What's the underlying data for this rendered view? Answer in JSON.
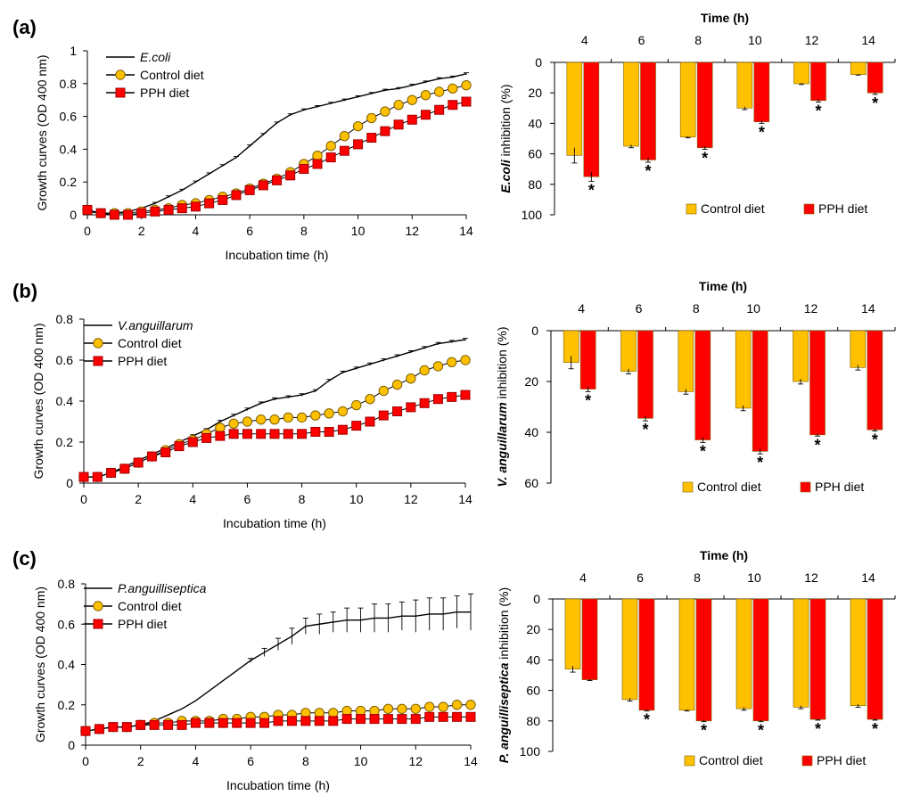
{
  "chart_data": [
    {
      "panel": "(a)",
      "type": "line",
      "xlabel": "Incubation time (h)",
      "ylabel": "Growth curves (OD 400 nm)",
      "xlim": [
        0,
        14
      ],
      "ylim": [
        0,
        1
      ],
      "xticks": [
        0,
        2,
        4,
        6,
        8,
        10,
        12,
        14
      ],
      "yticks": [
        0,
        0.2,
        0.4,
        0.6,
        0.8,
        1
      ],
      "ytick_labels": [
        "0",
        "0.2",
        "0.4",
        "0.6",
        "0.8",
        "1"
      ],
      "legend": [
        "E.coli",
        "Control diet",
        "PPH diet"
      ],
      "x": [
        0,
        0.5,
        1,
        1.5,
        2,
        2.5,
        3,
        3.5,
        4,
        4.5,
        5,
        5.5,
        6,
        6.5,
        7,
        7.5,
        8,
        8.5,
        9,
        9.5,
        10,
        10.5,
        11,
        11.5,
        12,
        12.5,
        13,
        13.5,
        14
      ],
      "series": [
        {
          "name": "E.coli",
          "style": "line",
          "color": "#000000",
          "values": [
            0.02,
            0.01,
            0.01,
            0.02,
            0.04,
            0.07,
            0.11,
            0.15,
            0.2,
            0.25,
            0.3,
            0.35,
            0.42,
            0.49,
            0.56,
            0.61,
            0.64,
            0.66,
            0.68,
            0.7,
            0.72,
            0.74,
            0.76,
            0.77,
            0.79,
            0.81,
            0.83,
            0.84,
            0.86
          ]
        },
        {
          "name": "Control diet",
          "style": "circle",
          "color": "#ffc000",
          "values": [
            0.03,
            0.01,
            0.01,
            0.01,
            0.02,
            0.03,
            0.04,
            0.06,
            0.07,
            0.09,
            0.11,
            0.13,
            0.16,
            0.19,
            0.22,
            0.26,
            0.31,
            0.36,
            0.42,
            0.48,
            0.54,
            0.59,
            0.63,
            0.67,
            0.7,
            0.73,
            0.75,
            0.77,
            0.79
          ]
        },
        {
          "name": "PPH diet",
          "style": "square",
          "color": "#ff0000",
          "values": [
            0.03,
            0.01,
            0.0,
            0.0,
            0.01,
            0.02,
            0.03,
            0.04,
            0.05,
            0.07,
            0.09,
            0.12,
            0.15,
            0.18,
            0.21,
            0.24,
            0.28,
            0.31,
            0.35,
            0.39,
            0.43,
            0.47,
            0.51,
            0.55,
            0.58,
            0.61,
            0.64,
            0.67,
            0.69
          ]
        }
      ]
    },
    {
      "panel": "(a)",
      "type": "bar",
      "title": "Time (h)",
      "ylabel_italic": "E.coli",
      "ylabel_rest": " inhibition (%)",
      "categories": [
        "4",
        "6",
        "8",
        "10",
        "12",
        "14"
      ],
      "ylim": [
        0,
        100
      ],
      "yticks": [
        0,
        20,
        40,
        60,
        80,
        100
      ],
      "legend": [
        "Control diet",
        "PPH diet"
      ],
      "significance": [
        true,
        true,
        true,
        true,
        true,
        true
      ],
      "series": [
        {
          "name": "Control diet",
          "color": "#ffc000",
          "values": [
            61,
            55,
            49,
            30,
            14,
            8
          ],
          "errors": [
            5,
            1,
            0.5,
            1,
            0.5,
            0.3
          ]
        },
        {
          "name": "PPH diet",
          "color": "#ff0000",
          "values": [
            75,
            64,
            56,
            39,
            25,
            20
          ],
          "errors": [
            3,
            1.5,
            1,
            1,
            1,
            1
          ]
        }
      ]
    },
    {
      "panel": "(b)",
      "type": "line",
      "xlabel": "Incubation time (h)",
      "ylabel": "Growth curves (OD 400 nm)",
      "xlim": [
        0,
        14
      ],
      "ylim": [
        0,
        0.8
      ],
      "xticks": [
        0,
        2,
        4,
        6,
        8,
        10,
        12,
        14
      ],
      "yticks": [
        0,
        0.2,
        0.4,
        0.6,
        0.8
      ],
      "ytick_labels": [
        "0",
        "0.2",
        "0.4",
        "0.6",
        "0.8"
      ],
      "legend": [
        "V.anguillarum",
        "Control diet",
        "PPH diet"
      ],
      "x": [
        0,
        0.5,
        1,
        1.5,
        2,
        2.5,
        3,
        3.5,
        4,
        4.5,
        5,
        5.5,
        6,
        6.5,
        7,
        7.5,
        8,
        8.5,
        9,
        9.5,
        10,
        10.5,
        11,
        11.5,
        12,
        12.5,
        13,
        13.5,
        14
      ],
      "series": [
        {
          "name": "V.anguillarum",
          "style": "line",
          "color": "#000000",
          "values": [
            0.03,
            0.03,
            0.05,
            0.08,
            0.11,
            0.14,
            0.17,
            0.2,
            0.23,
            0.26,
            0.3,
            0.33,
            0.36,
            0.39,
            0.41,
            0.42,
            0.43,
            0.45,
            0.5,
            0.54,
            0.56,
            0.58,
            0.6,
            0.62,
            0.64,
            0.66,
            0.68,
            0.69,
            0.7
          ]
        },
        {
          "name": "Control diet",
          "style": "circle",
          "color": "#ffc000",
          "values": [
            0.03,
            0.03,
            0.05,
            0.07,
            0.1,
            0.13,
            0.16,
            0.19,
            0.21,
            0.24,
            0.27,
            0.29,
            0.3,
            0.31,
            0.31,
            0.32,
            0.32,
            0.33,
            0.34,
            0.35,
            0.38,
            0.41,
            0.45,
            0.48,
            0.51,
            0.55,
            0.57,
            0.59,
            0.6
          ]
        },
        {
          "name": "PPH diet",
          "style": "square",
          "color": "#ff0000",
          "values": [
            0.03,
            0.03,
            0.05,
            0.07,
            0.1,
            0.13,
            0.15,
            0.18,
            0.2,
            0.22,
            0.23,
            0.24,
            0.24,
            0.24,
            0.24,
            0.24,
            0.24,
            0.25,
            0.25,
            0.26,
            0.28,
            0.3,
            0.33,
            0.35,
            0.37,
            0.39,
            0.41,
            0.42,
            0.43
          ]
        }
      ]
    },
    {
      "panel": "(b)",
      "type": "bar",
      "title": "Time (h)",
      "ylabel_italic": "V. anguillarum",
      "ylabel_rest": " inhibition (%)",
      "categories": [
        "4",
        "6",
        "8",
        "10",
        "12",
        "14"
      ],
      "ylim": [
        0,
        60
      ],
      "yticks": [
        0,
        20,
        40,
        60
      ],
      "legend": [
        "Control diet",
        "PPH diet"
      ],
      "significance": [
        true,
        true,
        true,
        true,
        true,
        true
      ],
      "series": [
        {
          "name": "Control diet",
          "color": "#ffc000",
          "values": [
            12.5,
            16,
            24,
            30.5,
            20,
            14.5
          ],
          "errors": [
            2.5,
            1,
            1,
            1,
            1,
            1
          ]
        },
        {
          "name": "PPH diet",
          "color": "#ff0000",
          "values": [
            23,
            34.5,
            43,
            47.5,
            41,
            39
          ],
          "errors": [
            1,
            1,
            1,
            1,
            0.5,
            0.5
          ]
        }
      ]
    },
    {
      "panel": "(c)",
      "type": "line",
      "xlabel": "Incubation time (h)",
      "ylabel": "Growth curves (OD 400 nm)",
      "xlim": [
        0,
        14
      ],
      "ylim": [
        0,
        0.8
      ],
      "xticks": [
        0,
        2,
        4,
        6,
        8,
        10,
        12,
        14
      ],
      "yticks": [
        0,
        0.2,
        0.4,
        0.6,
        0.8
      ],
      "ytick_labels": [
        "0",
        "0.2",
        "0.4",
        "0.6",
        "0.8"
      ],
      "legend": [
        "P.anguilliseptica",
        "Control diet",
        "PPH diet"
      ],
      "x": [
        0,
        0.5,
        1,
        1.5,
        2,
        2.5,
        3,
        3.5,
        4,
        4.5,
        5,
        5.5,
        6,
        6.5,
        7,
        7.5,
        8,
        8.5,
        9,
        9.5,
        10,
        10.5,
        11,
        11.5,
        12,
        12.5,
        13,
        13.5,
        14
      ],
      "series": [
        {
          "name": "P.anguilliseptica",
          "style": "line",
          "color": "#000000",
          "values": [
            0.07,
            0.08,
            0.09,
            0.09,
            0.1,
            0.12,
            0.15,
            0.18,
            0.22,
            0.27,
            0.32,
            0.37,
            0.42,
            0.46,
            0.5,
            0.54,
            0.59,
            0.6,
            0.61,
            0.62,
            0.62,
            0.63,
            0.63,
            0.64,
            0.64,
            0.65,
            0.65,
            0.66,
            0.66
          ],
          "errors": [
            0,
            0,
            0,
            0,
            0,
            0,
            0,
            0,
            0,
            0,
            0,
            0,
            0.01,
            0.02,
            0.03,
            0.04,
            0.04,
            0.05,
            0.05,
            0.06,
            0.06,
            0.07,
            0.07,
            0.07,
            0.08,
            0.08,
            0.08,
            0.08,
            0.09
          ]
        },
        {
          "name": "Control diet",
          "style": "circle",
          "color": "#ffc000",
          "values": [
            0.07,
            0.08,
            0.09,
            0.09,
            0.1,
            0.11,
            0.11,
            0.12,
            0.12,
            0.12,
            0.13,
            0.13,
            0.14,
            0.14,
            0.15,
            0.15,
            0.16,
            0.16,
            0.16,
            0.17,
            0.17,
            0.17,
            0.18,
            0.18,
            0.18,
            0.19,
            0.19,
            0.2,
            0.2
          ]
        },
        {
          "name": "PPH diet",
          "style": "square",
          "color": "#ff0000",
          "values": [
            0.07,
            0.08,
            0.09,
            0.09,
            0.1,
            0.1,
            0.1,
            0.1,
            0.11,
            0.11,
            0.11,
            0.11,
            0.11,
            0.11,
            0.12,
            0.12,
            0.12,
            0.12,
            0.12,
            0.13,
            0.13,
            0.13,
            0.13,
            0.13,
            0.13,
            0.14,
            0.14,
            0.14,
            0.14
          ]
        }
      ]
    },
    {
      "panel": "(c)",
      "type": "bar",
      "title": "Time (h)",
      "ylabel_italic": "P. anguilliseptica",
      "ylabel_rest": " inhibition (%)",
      "categories": [
        "4",
        "6",
        "8",
        "10",
        "12",
        "14"
      ],
      "ylim": [
        0,
        100
      ],
      "yticks": [
        0,
        20,
        40,
        60,
        80,
        100
      ],
      "legend": [
        "Control diet",
        "PPH diet"
      ],
      "significance": [
        false,
        true,
        true,
        true,
        true,
        true
      ],
      "series": [
        {
          "name": "Control diet",
          "color": "#ffc000",
          "values": [
            46,
            66,
            73,
            72,
            71,
            70
          ],
          "errors": [
            2,
            1,
            0.5,
            1,
            1,
            1
          ]
        },
        {
          "name": "PPH diet",
          "color": "#ff0000",
          "values": [
            53,
            73,
            80,
            80,
            79,
            79
          ],
          "errors": [
            0.5,
            0.5,
            0.5,
            0.5,
            0.5,
            0.5
          ]
        }
      ]
    }
  ]
}
